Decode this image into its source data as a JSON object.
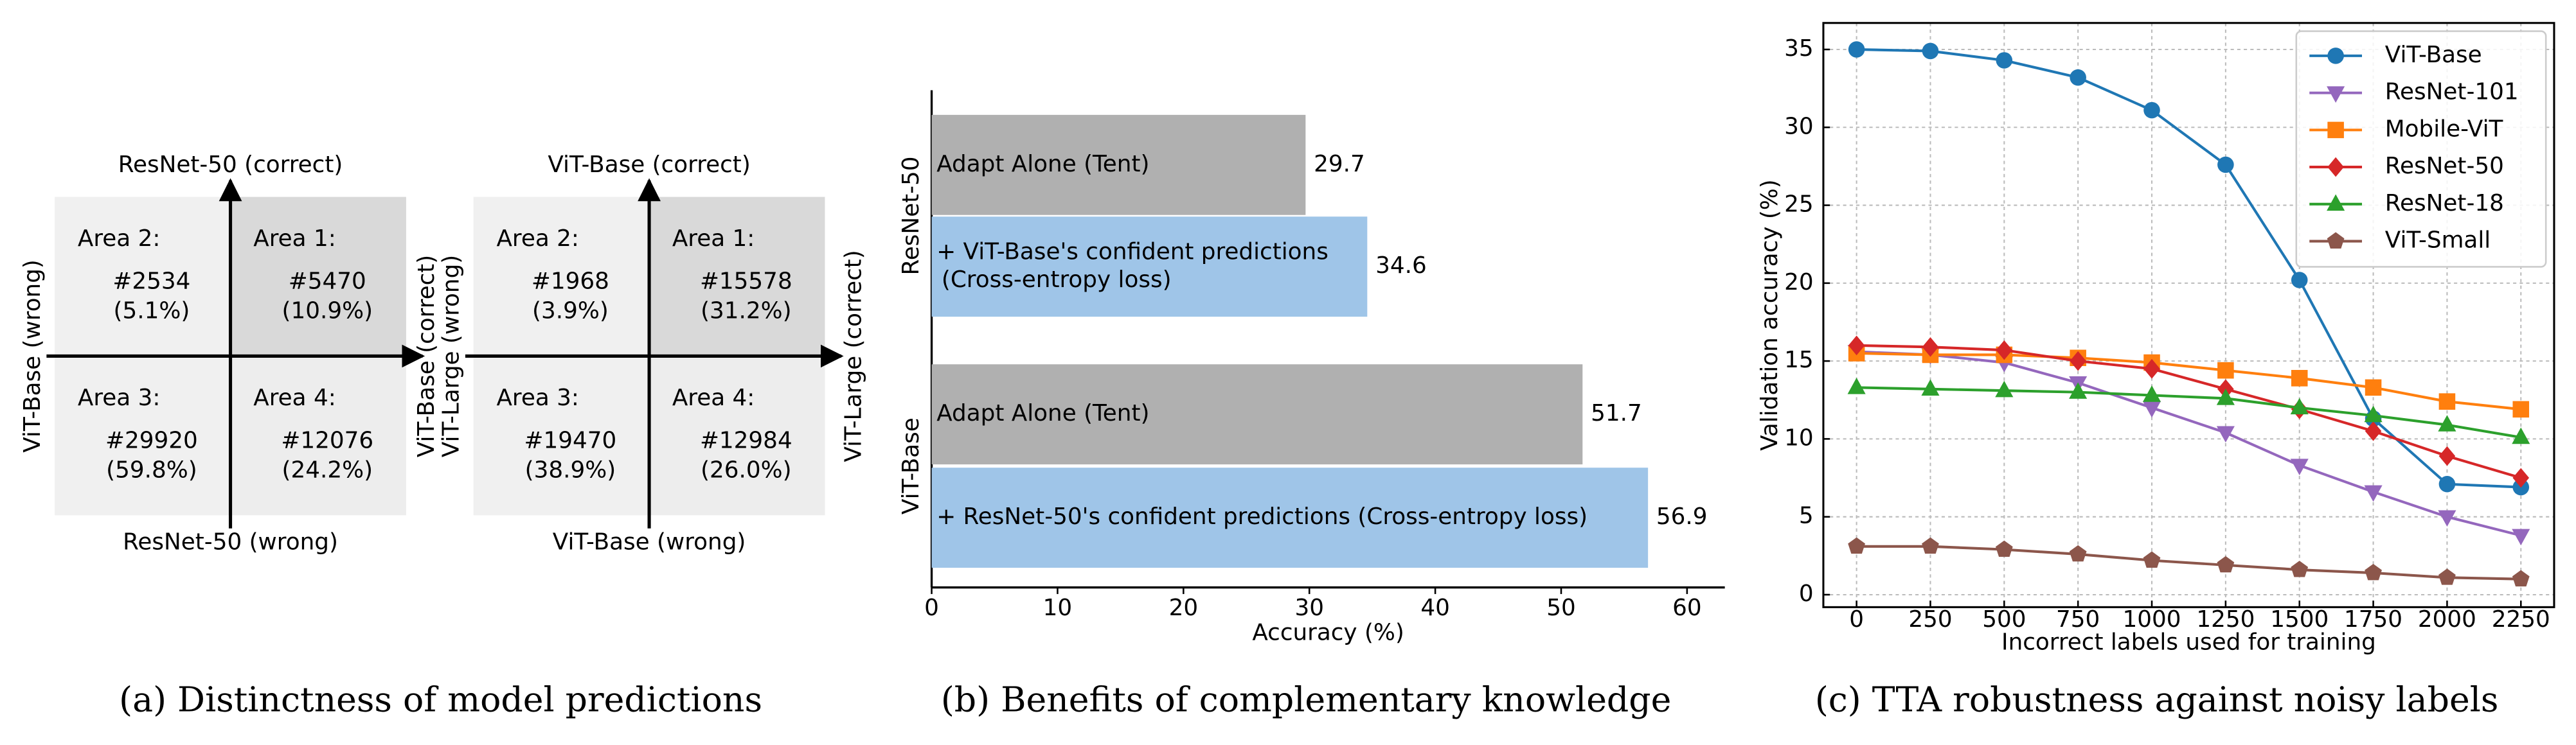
{
  "diagrams": {
    "caption": "(a) Distinctness of model predictions",
    "items": [
      {
        "top": "ResNet-50 (correct)",
        "bottom": "ResNet-50 (wrong)",
        "left": "ViT-Base (wrong)",
        "right": "ViT-Base (correct)",
        "areas": [
          {
            "name": "Area 2:",
            "count": "#2534",
            "pct": "(5.1%)"
          },
          {
            "name": "Area 1:",
            "count": "#5470",
            "pct": "(10.9%)"
          },
          {
            "name": "Area 3:",
            "count": "#29920",
            "pct": "(59.8%)"
          },
          {
            "name": "Area 4:",
            "count": "#12076",
            "pct": "(24.2%)"
          }
        ]
      },
      {
        "top": "ViT-Base (correct)",
        "bottom": "ViT-Base (wrong)",
        "left": "ViT-Large (wrong)",
        "right": "ViT-Large (correct)",
        "areas": [
          {
            "name": "Area 2:",
            "count": "#1968",
            "pct": "(3.9%)"
          },
          {
            "name": "Area 1:",
            "count": "#15578",
            "pct": "(31.2%)"
          },
          {
            "name": "Area 3:",
            "count": "#19470",
            "pct": "(38.9%)"
          },
          {
            "name": "Area 4:",
            "count": "#12984",
            "pct": "(26.0%)"
          }
        ]
      }
    ]
  },
  "chart_data": [
    {
      "type": "hbar",
      "caption": "(b) Benefits of complementary knowledge",
      "xlabel": "Accuracy (%)",
      "groups": [
        {
          "name": "ResNet-50",
          "bars": [
            {
              "label": [
                "Adapt Alone (Tent)"
              ],
              "value": 29.7,
              "color": "#b0b0b0"
            },
            {
              "label": [
                "+ ViT-Base's confident predictions",
                "(Cross-entropy loss)"
              ],
              "value": 34.6,
              "color": "#9fc5e8"
            }
          ]
        },
        {
          "name": "ViT-Base",
          "bars": [
            {
              "label": [
                "Adapt Alone (Tent)"
              ],
              "value": 51.7,
              "color": "#b0b0b0"
            },
            {
              "label": [
                "+ ResNet-50's confident predictions (Cross-entropy loss)"
              ],
              "value": 56.9,
              "color": "#9fc5e8"
            }
          ]
        }
      ],
      "xlim": [
        0,
        63
      ],
      "xticks": [
        0,
        10,
        20,
        30,
        40,
        50,
        60
      ]
    },
    {
      "type": "line",
      "caption": "(c) TTA robustness against noisy labels",
      "xlabel": "Incorrect labels used for training",
      "ylabel": "Validation accuracy (%)",
      "x": [
        0,
        250,
        500,
        750,
        1000,
        1250,
        1500,
        1750,
        2000,
        2250
      ],
      "series": [
        {
          "name": "ViT-Base",
          "color": "#1f77b4",
          "marker": "circle",
          "values": [
            35.0,
            34.9,
            34.3,
            33.2,
            31.1,
            27.6,
            20.2,
            11.3,
            7.1,
            6.9
          ]
        },
        {
          "name": "ResNet-101",
          "color": "#9467bd",
          "marker": "triangle-down",
          "values": [
            15.6,
            15.4,
            14.9,
            13.6,
            12.0,
            10.4,
            8.3,
            6.6,
            5.0,
            3.8
          ]
        },
        {
          "name": "Mobile-ViT",
          "color": "#ff7f0e",
          "marker": "square",
          "values": [
            15.5,
            15.4,
            15.4,
            15.2,
            14.9,
            14.4,
            13.9,
            13.3,
            12.4,
            11.9
          ]
        },
        {
          "name": "ResNet-50",
          "color": "#d62728",
          "marker": "diamond",
          "values": [
            16.0,
            15.9,
            15.7,
            15.0,
            14.5,
            13.2,
            11.9,
            10.5,
            8.9,
            7.5
          ]
        },
        {
          "name": "ResNet-18",
          "color": "#2ca02c",
          "marker": "triangle-up",
          "values": [
            13.3,
            13.2,
            13.1,
            13.0,
            12.8,
            12.6,
            12.0,
            11.5,
            10.9,
            10.1
          ]
        },
        {
          "name": "ViT-Small",
          "color": "#8c564b",
          "marker": "pentagon",
          "values": [
            3.1,
            3.1,
            2.9,
            2.6,
            2.2,
            1.9,
            1.6,
            1.4,
            1.1,
            1.0
          ]
        }
      ],
      "xlim": [
        -112.5,
        2362.5
      ],
      "ylim": [
        -0.8,
        36.7
      ],
      "xticks": [
        0,
        250,
        500,
        750,
        1000,
        1250,
        1500,
        1750,
        2000,
        2250
      ],
      "yticks": [
        0,
        5,
        10,
        15,
        20,
        25,
        30,
        35
      ],
      "grid": true,
      "legend": "upper right"
    }
  ]
}
